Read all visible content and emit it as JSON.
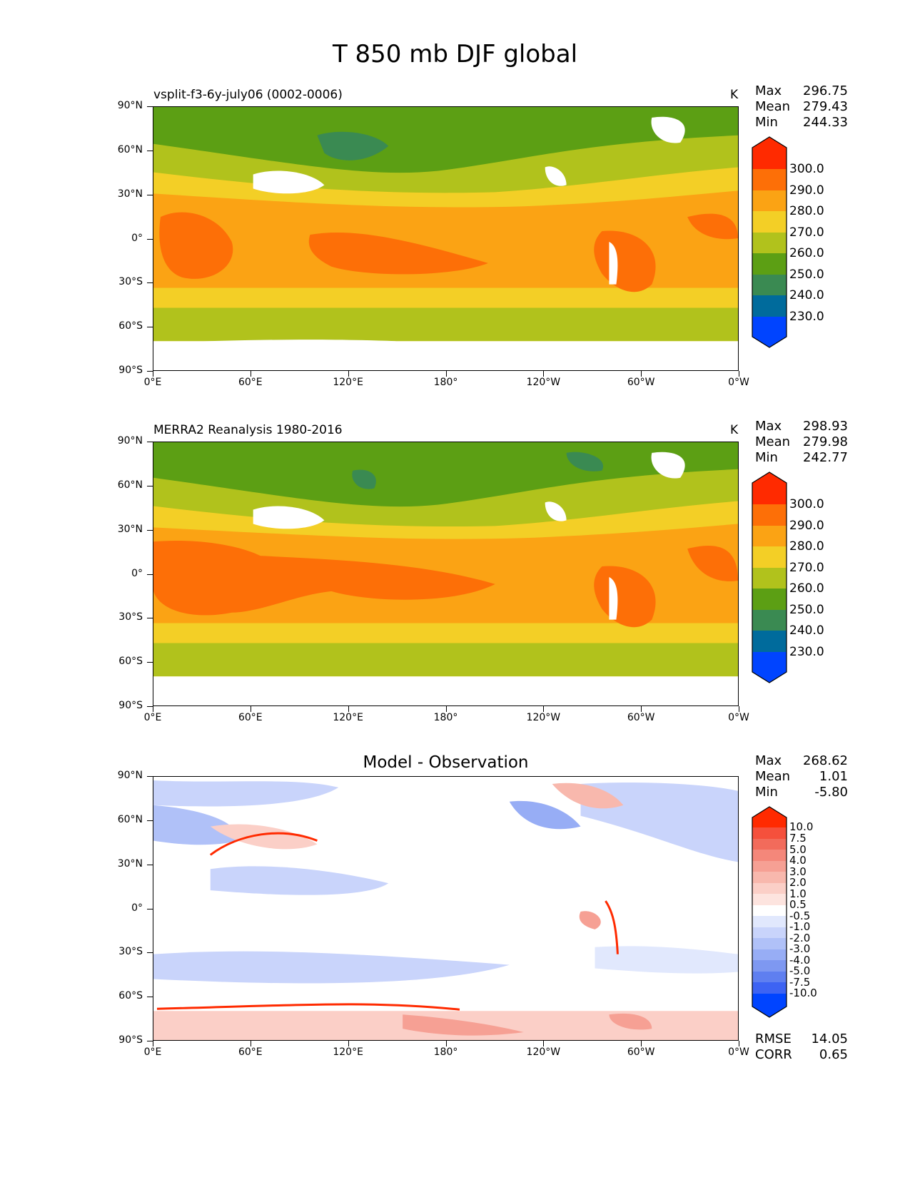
{
  "title": "T 850 mb DJF global",
  "x_tick_labels": [
    "0°E",
    "60°E",
    "120°E",
    "180°",
    "120°W",
    "60°W",
    "0°W"
  ],
  "y_tick_labels": [
    "90°N",
    "60°N",
    "30°N",
    "0°",
    "30°S",
    "60°S",
    "90°S"
  ],
  "panels": [
    {
      "title_left": "vsplit-f3-6y-july06 (0002-0006)",
      "unit": "K",
      "stats": {
        "max_label": "Max",
        "max": "296.75",
        "mean_label": "Mean",
        "mean": "279.43",
        "min_label": "Min",
        "min": "244.33"
      }
    },
    {
      "title_left": "MERRA2 Reanalysis 1980-2016",
      "unit": "K",
      "stats": {
        "max_label": "Max",
        "max": "298.93",
        "mean_label": "Mean",
        "mean": "279.98",
        "min_label": "Min",
        "min": "242.77"
      }
    },
    {
      "title_center": "Model - Observation",
      "stats": {
        "max_label": "Max",
        "max": "268.62",
        "mean_label": "Mean",
        "mean": "1.01",
        "min_label": "Min",
        "min": "-5.80"
      },
      "rmse_label": "RMSE",
      "rmse": "14.05",
      "corr_label": "CORR",
      "corr": "0.65"
    }
  ],
  "colorbar_abs": {
    "labels": [
      "300.0",
      "290.0",
      "280.0",
      "270.0",
      "260.0",
      "250.0",
      "240.0",
      "230.0"
    ],
    "colors": [
      "#ff2a00",
      "#fd6f07",
      "#fba314",
      "#f3cf26",
      "#b1c21c",
      "#5c9f14",
      "#3a8a52",
      "#006b9c",
      "#0044ff"
    ]
  },
  "colorbar_diff": {
    "labels": [
      "10.0",
      "7.5",
      "5.0",
      "4.0",
      "3.0",
      "2.0",
      "1.0",
      "0.5",
      "-0.5",
      "-1.0",
      "-2.0",
      "-3.0",
      "-4.0",
      "-5.0",
      "-7.5",
      "-10.0"
    ],
    "colors": [
      "#ff2a00",
      "#f5503c",
      "#f26b5b",
      "#f4877a",
      "#f6a094",
      "#f8b8ad",
      "#fbcfc7",
      "#fde4df",
      "#ffffff",
      "#e1e8fd",
      "#c9d4fb",
      "#b0c1f8",
      "#97adf5",
      "#7e98f1",
      "#5f7ff0",
      "#3d63f3",
      "#0044ff"
    ]
  },
  "chart_data": [
    {
      "type": "heatmap",
      "title": "vsplit-f3-6y-july06 (0002-0006)",
      "variable": "T 850 mb DJF",
      "unit": "K",
      "x_ticks": [
        "0°E",
        "60°E",
        "120°E",
        "180°",
        "120°W",
        "60°W",
        "0°W"
      ],
      "y_ticks": [
        "90°N",
        "60°N",
        "30°N",
        "0°",
        "30°S",
        "60°S",
        "90°S"
      ],
      "contour_levels": [
        230.0,
        240.0,
        250.0,
        260.0,
        270.0,
        280.0,
        290.0,
        300.0
      ],
      "stats": {
        "max": 296.75,
        "mean": 279.43,
        "min": 244.33
      }
    },
    {
      "type": "heatmap",
      "title": "MERRA2 Reanalysis 1980-2016",
      "variable": "T 850 mb DJF",
      "unit": "K",
      "x_ticks": [
        "0°E",
        "60°E",
        "120°E",
        "180°",
        "120°W",
        "60°W",
        "0°W"
      ],
      "y_ticks": [
        "90°N",
        "60°N",
        "30°N",
        "0°",
        "30°S",
        "60°S",
        "90°S"
      ],
      "contour_levels": [
        230.0,
        240.0,
        250.0,
        260.0,
        270.0,
        280.0,
        290.0,
        300.0
      ],
      "stats": {
        "max": 298.93,
        "mean": 279.98,
        "min": 242.77
      }
    },
    {
      "type": "heatmap",
      "title": "Model - Observation",
      "x_ticks": [
        "0°E",
        "60°E",
        "120°E",
        "180°",
        "120°W",
        "60°W",
        "0°W"
      ],
      "y_ticks": [
        "90°N",
        "60°N",
        "30°N",
        "0°",
        "30°S",
        "60°S",
        "90°S"
      ],
      "contour_levels": [
        -10.0,
        -7.5,
        -5.0,
        -4.0,
        -3.0,
        -2.0,
        -1.0,
        -0.5,
        0.5,
        1.0,
        2.0,
        3.0,
        4.0,
        5.0,
        7.5,
        10.0
      ],
      "stats": {
        "max": 268.62,
        "mean": 1.01,
        "min": -5.8,
        "rmse": 14.05,
        "corr": 0.65
      }
    }
  ]
}
